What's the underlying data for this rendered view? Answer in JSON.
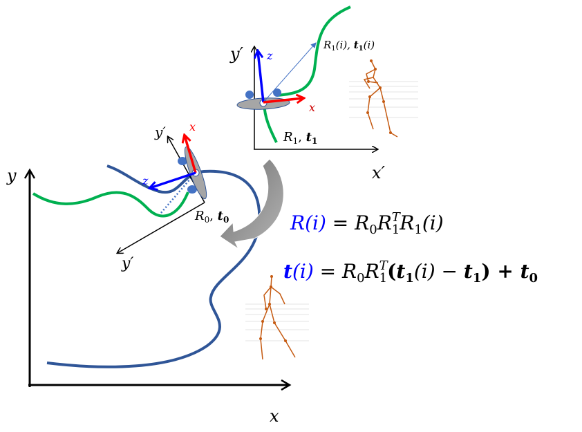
{
  "colors": {
    "global_curve": "#2F5597",
    "local_curve": "#00B050",
    "x_axis_arrow": "#FF0000",
    "z_axis_arrow": "#0000FF",
    "equation_lhs": "#0000FF",
    "skeleton": "#C55A11",
    "transform_arrow": "#8C8C8C"
  },
  "global_frame": {
    "x_label": "x",
    "y_label": "y"
  },
  "reference_pose": {
    "x_label": "x",
    "z_label": "z",
    "y_label": "y′",
    "axis_y_label": "y′",
    "pose_label_R": "R",
    "pose_label_R_sub": "0",
    "pose_label_t": "t",
    "pose_label_t_sub": "0"
  },
  "local_frame": {
    "x_label": "x′",
    "y_label": "y′",
    "arrow_x_label": "x",
    "arrow_z_label": "z",
    "start_R": "R",
    "start_R_sub": "1",
    "start_t": "t",
    "start_t_sub": "1",
    "trajectory_R": "R",
    "trajectory_R_sub": "1",
    "trajectory_R_arg": "(i), ",
    "trajectory_t": "t",
    "trajectory_t_sub": "1",
    "trajectory_t_arg": "(i)"
  },
  "equations": {
    "rotation": {
      "lhs": "R(i)",
      "eq": " = ",
      "r0": "R",
      "r0_sub": "0",
      "r1t": "R",
      "r1t_sup": "T",
      "r1t_sub": "1",
      "r1": "R",
      "r1_sub": "1",
      "r1_arg": "(i)"
    },
    "translation": {
      "lhs_t": "t",
      "lhs_arg": "(i)",
      "eq": " = ",
      "r0": "R",
      "r0_sub": "0",
      "r1t": "R",
      "r1t_sup": "T",
      "r1t_sub": "1",
      "open": "(",
      "t1": "t",
      "t1_sub": "1",
      "t1_arg": "(i) − ",
      "t1b": "t",
      "t1b_sub": "1",
      "close": ") + ",
      "t0": "t",
      "t0_sub": "0"
    }
  }
}
